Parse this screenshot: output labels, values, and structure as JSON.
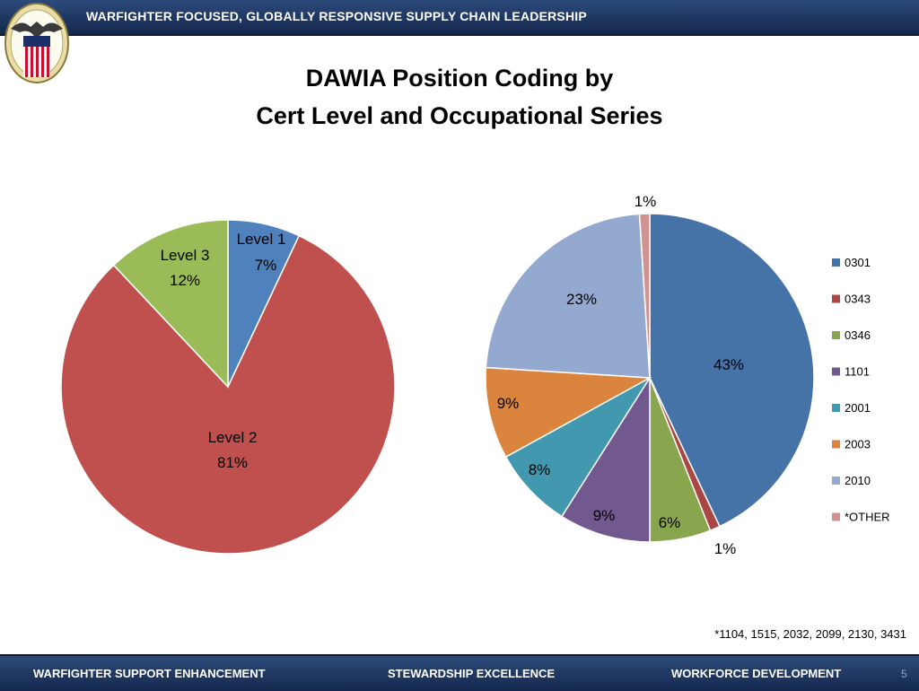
{
  "header": {
    "banner": "WARFIGHTER FOCUSED, GLOBALLY RESPONSIVE SUPPLY CHAIN LEADERSHIP"
  },
  "title": {
    "line1": "DAWIA Position Coding by",
    "line2": "Cert Level and Occupational Series"
  },
  "footnote": "*1104, 1515, 2032, 2099, 2130, 3431",
  "footer": {
    "item1": "WARFIGHTER SUPPORT ENHANCEMENT",
    "item2": "STEWARDSHIP EXCELLENCE",
    "item3": "WORKFORCE DEVELOPMENT",
    "page": "5"
  },
  "chart_data": [
    {
      "type": "pie",
      "title": "",
      "legend": "none",
      "slices": [
        {
          "label": "Level 1",
          "value": 7,
          "display": "7%",
          "color": "#4f81bd"
        },
        {
          "label": "Level 2",
          "value": 81,
          "display": "81%",
          "color": "#c0504d"
        },
        {
          "label": "Level 3",
          "value": 12,
          "display": "12%",
          "color": "#9bbb59"
        }
      ]
    },
    {
      "type": "pie",
      "title": "",
      "legend": "right",
      "slices": [
        {
          "label": "0301",
          "value": 43,
          "display": "43%",
          "color": "#4572a7"
        },
        {
          "label": "0343",
          "value": 1,
          "display": "1%",
          "color": "#aa4643"
        },
        {
          "label": "0346",
          "value": 6,
          "display": "6%",
          "color": "#89a54e"
        },
        {
          "label": "1101",
          "value": 9,
          "display": "9%",
          "color": "#71588f"
        },
        {
          "label": "2001",
          "value": 8,
          "display": "8%",
          "color": "#4198af"
        },
        {
          "label": "2003",
          "value": 9,
          "display": "9%",
          "color": "#db843d"
        },
        {
          "label": "2010",
          "value": 23,
          "display": "23%",
          "color": "#93a9cf"
        },
        {
          "label": "*OTHER",
          "value": 1,
          "display": "1%",
          "color": "#d19392"
        }
      ]
    }
  ]
}
